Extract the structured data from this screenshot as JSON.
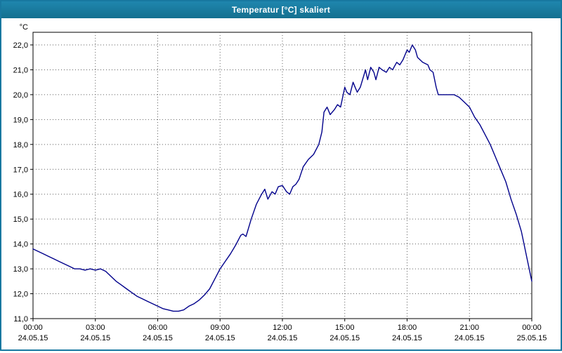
{
  "window": {
    "title": "Temperatur [°C] skaliert"
  },
  "chart_data": {
    "type": "line",
    "title": "Temperatur [°C] skaliert",
    "ylabel": "°C",
    "xlabel": "",
    "ylim": [
      11.0,
      22.5
    ],
    "xlim_hours": [
      0,
      24
    ],
    "grid": "dotted",
    "legend_position": "none",
    "line_color": "#00008b",
    "yticks": [
      {
        "v": 22,
        "label": "22,0"
      },
      {
        "v": 21,
        "label": "21,0"
      },
      {
        "v": 20,
        "label": "20,0"
      },
      {
        "v": 19,
        "label": "19,0"
      },
      {
        "v": 18,
        "label": "18,0"
      },
      {
        "v": 17,
        "label": "17,0"
      },
      {
        "v": 16,
        "label": "16,0"
      },
      {
        "v": 15,
        "label": "15,0"
      },
      {
        "v": 14,
        "label": "14,0"
      },
      {
        "v": 13,
        "label": "13,0"
      },
      {
        "v": 12,
        "label": "12,0"
      },
      {
        "v": 11,
        "label": "11,0"
      }
    ],
    "xticks": [
      {
        "h": 0,
        "time": "00:00",
        "date": "24.05.15"
      },
      {
        "h": 3,
        "time": "03:00",
        "date": "24.05.15"
      },
      {
        "h": 6,
        "time": "06:00",
        "date": "24.05.15"
      },
      {
        "h": 9,
        "time": "09:00",
        "date": "24.05.15"
      },
      {
        "h": 12,
        "time": "12:00",
        "date": "24.05.15"
      },
      {
        "h": 15,
        "time": "15:00",
        "date": "24.05.15"
      },
      {
        "h": 18,
        "time": "18:00",
        "date": "24.05.15"
      },
      {
        "h": 21,
        "time": "21:00",
        "date": "24.05.15"
      },
      {
        "h": 24,
        "time": "00:00",
        "date": "25.05.15"
      }
    ],
    "series": [
      {
        "name": "Temperatur",
        "color": "#00008b",
        "points": [
          [
            0.0,
            13.8
          ],
          [
            0.25,
            13.7
          ],
          [
            0.5,
            13.6
          ],
          [
            0.75,
            13.5
          ],
          [
            1.0,
            13.4
          ],
          [
            1.25,
            13.3
          ],
          [
            1.5,
            13.2
          ],
          [
            1.75,
            13.1
          ],
          [
            2.0,
            13.0
          ],
          [
            2.25,
            13.0
          ],
          [
            2.5,
            12.95
          ],
          [
            2.75,
            13.0
          ],
          [
            3.0,
            12.95
          ],
          [
            3.25,
            13.0
          ],
          [
            3.5,
            12.9
          ],
          [
            3.75,
            12.7
          ],
          [
            4.0,
            12.5
          ],
          [
            4.25,
            12.35
          ],
          [
            4.5,
            12.2
          ],
          [
            4.75,
            12.05
          ],
          [
            5.0,
            11.9
          ],
          [
            5.25,
            11.8
          ],
          [
            5.5,
            11.7
          ],
          [
            5.75,
            11.6
          ],
          [
            6.0,
            11.5
          ],
          [
            6.25,
            11.4
          ],
          [
            6.5,
            11.35
          ],
          [
            6.75,
            11.3
          ],
          [
            7.0,
            11.3
          ],
          [
            7.25,
            11.35
          ],
          [
            7.5,
            11.5
          ],
          [
            7.75,
            11.6
          ],
          [
            8.0,
            11.75
          ],
          [
            8.25,
            11.95
          ],
          [
            8.5,
            12.2
          ],
          [
            8.75,
            12.6
          ],
          [
            9.0,
            13.0
          ],
          [
            9.25,
            13.3
          ],
          [
            9.5,
            13.6
          ],
          [
            9.75,
            13.95
          ],
          [
            10.0,
            14.35
          ],
          [
            10.1,
            14.4
          ],
          [
            10.25,
            14.3
          ],
          [
            10.5,
            15.0
          ],
          [
            10.75,
            15.6
          ],
          [
            11.0,
            16.0
          ],
          [
            11.15,
            16.2
          ],
          [
            11.3,
            15.8
          ],
          [
            11.5,
            16.1
          ],
          [
            11.65,
            16.0
          ],
          [
            11.8,
            16.3
          ],
          [
            12.0,
            16.35
          ],
          [
            12.2,
            16.1
          ],
          [
            12.35,
            16.0
          ],
          [
            12.5,
            16.3
          ],
          [
            12.65,
            16.4
          ],
          [
            12.8,
            16.6
          ],
          [
            13.0,
            17.1
          ],
          [
            13.25,
            17.4
          ],
          [
            13.5,
            17.6
          ],
          [
            13.75,
            18.0
          ],
          [
            13.9,
            18.5
          ],
          [
            14.0,
            19.3
          ],
          [
            14.15,
            19.5
          ],
          [
            14.3,
            19.2
          ],
          [
            14.5,
            19.4
          ],
          [
            14.65,
            19.6
          ],
          [
            14.8,
            19.5
          ],
          [
            15.0,
            20.3
          ],
          [
            15.1,
            20.1
          ],
          [
            15.25,
            20.0
          ],
          [
            15.4,
            20.5
          ],
          [
            15.5,
            20.3
          ],
          [
            15.6,
            20.1
          ],
          [
            15.75,
            20.3
          ],
          [
            16.0,
            21.0
          ],
          [
            16.1,
            20.6
          ],
          [
            16.25,
            21.1
          ],
          [
            16.4,
            20.9
          ],
          [
            16.5,
            20.6
          ],
          [
            16.65,
            21.1
          ],
          [
            16.8,
            21.0
          ],
          [
            17.0,
            20.9
          ],
          [
            17.15,
            21.1
          ],
          [
            17.3,
            21.0
          ],
          [
            17.5,
            21.3
          ],
          [
            17.65,
            21.2
          ],
          [
            17.8,
            21.4
          ],
          [
            18.0,
            21.8
          ],
          [
            18.1,
            21.7
          ],
          [
            18.25,
            22.0
          ],
          [
            18.4,
            21.8
          ],
          [
            18.5,
            21.5
          ],
          [
            18.75,
            21.3
          ],
          [
            19.0,
            21.2
          ],
          [
            19.1,
            21.0
          ],
          [
            19.25,
            20.9
          ],
          [
            19.4,
            20.3
          ],
          [
            19.5,
            20.0
          ],
          [
            19.75,
            20.0
          ],
          [
            20.0,
            20.0
          ],
          [
            20.25,
            20.0
          ],
          [
            20.5,
            19.9
          ],
          [
            20.75,
            19.7
          ],
          [
            21.0,
            19.5
          ],
          [
            21.25,
            19.1
          ],
          [
            21.5,
            18.8
          ],
          [
            21.75,
            18.4
          ],
          [
            22.0,
            18.0
          ],
          [
            22.25,
            17.5
          ],
          [
            22.5,
            17.0
          ],
          [
            22.75,
            16.5
          ],
          [
            23.0,
            15.8
          ],
          [
            23.25,
            15.2
          ],
          [
            23.5,
            14.5
          ],
          [
            23.75,
            13.5
          ],
          [
            24.0,
            12.5
          ]
        ]
      }
    ]
  }
}
